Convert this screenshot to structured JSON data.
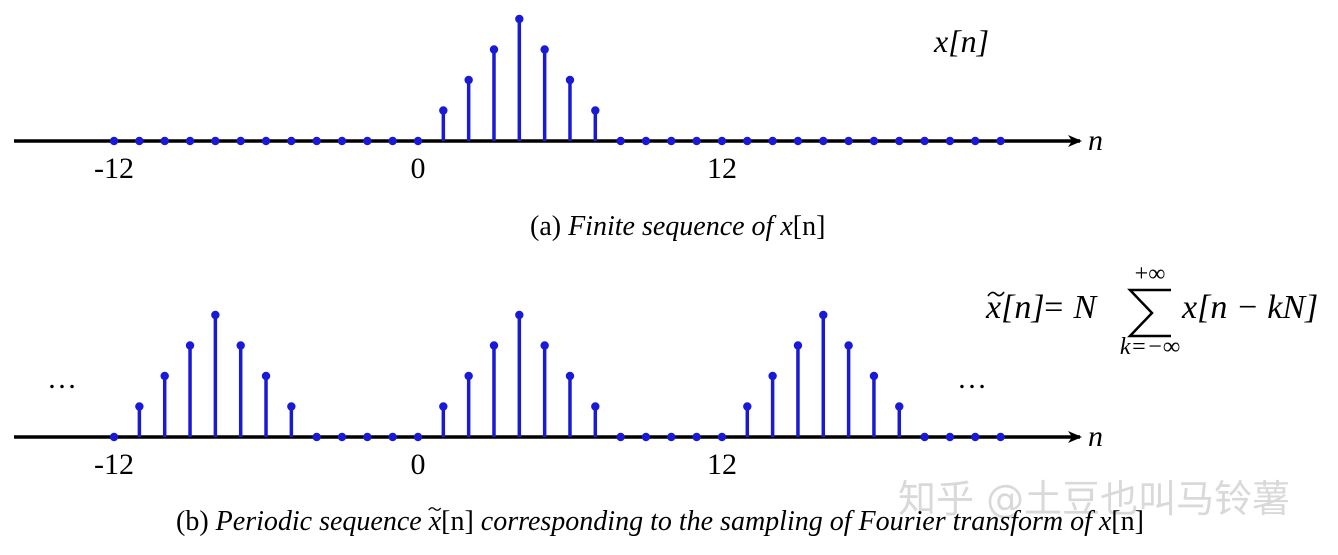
{
  "colors": {
    "stem": "#1a1ad6",
    "axis": "#000000",
    "watermark": "#d9d9d9"
  },
  "chart_data": [
    {
      "type": "stem",
      "id": "a",
      "x": [
        -12,
        -11,
        -10,
        -9,
        -8,
        -7,
        -6,
        -5,
        -4,
        -3,
        -2,
        -1,
        0,
        1,
        2,
        3,
        4,
        5,
        6,
        7,
        8,
        9,
        10,
        11,
        12,
        13,
        14,
        15,
        16,
        17,
        18,
        19,
        20,
        21,
        22,
        23
      ],
      "y": [
        0,
        0,
        0,
        0,
        0,
        0,
        0,
        0,
        0,
        0,
        0,
        0,
        0,
        1,
        2,
        3,
        4,
        3,
        2,
        1,
        0,
        0,
        0,
        0,
        0,
        0,
        0,
        0,
        0,
        0,
        0,
        0,
        0,
        0,
        0,
        0
      ],
      "xticks": [
        "-12",
        "0",
        "12"
      ],
      "xlabel": "n",
      "annotation": "x[n]",
      "caption": {
        "prefix": "(a) ",
        "italic": "Finite sequence of ",
        "var": "x",
        "suffix": "[n]"
      }
    },
    {
      "type": "stem",
      "id": "b",
      "period": 12,
      "x": [
        -12,
        -11,
        -10,
        -9,
        -8,
        -7,
        -6,
        -5,
        -4,
        -3,
        -2,
        -1,
        0,
        1,
        2,
        3,
        4,
        5,
        6,
        7,
        8,
        9,
        10,
        11,
        12,
        13,
        14,
        15,
        16,
        17,
        18,
        19,
        20,
        21,
        22,
        23
      ],
      "y": [
        0,
        1,
        2,
        3,
        4,
        3,
        2,
        1,
        0,
        0,
        0,
        0,
        0,
        1,
        2,
        3,
        4,
        3,
        2,
        1,
        0,
        0,
        0,
        0,
        0,
        1,
        2,
        3,
        4,
        3,
        2,
        1,
        0,
        0,
        0,
        0
      ],
      "xticks": [
        "-12",
        "0",
        "12"
      ],
      "xlabel": "n",
      "ellipsis_left": "…",
      "ellipsis_right": "…",
      "formula": {
        "lhs": "x[n]",
        "eq": "= N",
        "upper": "+∞",
        "lower": "k=−∞",
        "rhs": "x[n − kN]"
      },
      "caption": {
        "prefix": "(b) ",
        "italic_1": "Periodic sequence ",
        "var_tilde": "x",
        "mid": "[n]",
        "italic_2": " corresponding to the sampling of Fourier transform of ",
        "var": "x",
        "suffix": "[n]"
      }
    }
  ],
  "watermark": "知乎 @土豆也叫马铃薯"
}
